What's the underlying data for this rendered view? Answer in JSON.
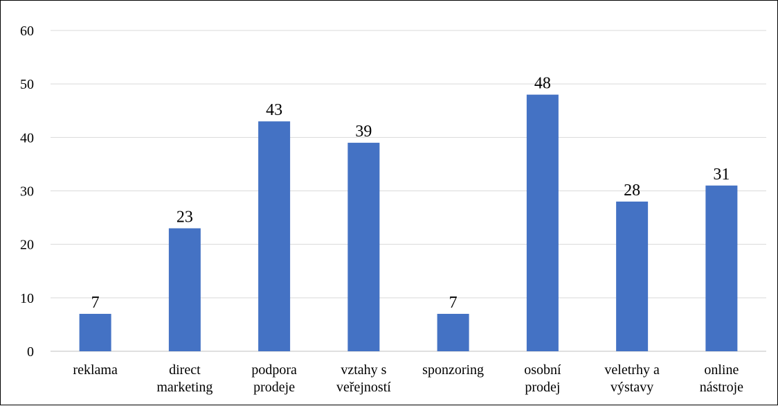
{
  "chart_data": {
    "type": "bar",
    "categories": [
      [
        "reklama"
      ],
      [
        "direct",
        "marketing"
      ],
      [
        "podpora",
        "prodeje"
      ],
      [
        "vztahy s",
        "veřejností"
      ],
      [
        "sponzoring"
      ],
      [
        "osobní",
        "prodej"
      ],
      [
        "veletrhy a",
        "výstavy"
      ],
      [
        "online",
        "nástroje"
      ]
    ],
    "values": [
      7,
      23,
      43,
      39,
      7,
      48,
      28,
      31
    ],
    "ylim": [
      0,
      60
    ],
    "yticks": [
      0,
      10,
      20,
      30,
      40,
      50,
      60
    ],
    "grid": true,
    "legend": "none",
    "data_labels": true,
    "bar_color": "#4472C4",
    "grid_color": "#D9D9D9"
  }
}
